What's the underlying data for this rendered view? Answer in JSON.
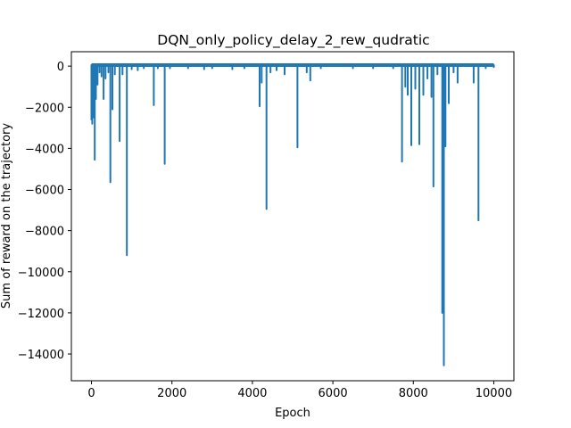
{
  "chart_data": {
    "type": "line",
    "title": "DQN_only_policy_delay_2_rew_qudratic",
    "xlabel": "Epoch",
    "ylabel": "Sum of reward on the trajectory",
    "xlim": [
      -500,
      10500
    ],
    "ylim": [
      -15300,
      700
    ],
    "xticks": [
      0,
      2000,
      4000,
      6000,
      8000,
      10000
    ],
    "xtick_labels": [
      "0",
      "2000",
      "4000",
      "6000",
      "8000",
      "10000"
    ],
    "yticks": [
      0,
      -2000,
      -4000,
      -6000,
      -8000,
      -10000,
      -12000,
      -14000
    ],
    "ytick_labels": [
      "0",
      "−2000",
      "−4000",
      "−6000",
      "−8000",
      "−10000",
      "−12000",
      "−14000"
    ],
    "grid": false,
    "color": "#1f77b4",
    "baseline": 50,
    "series": [
      {
        "dips": [
          [
            0,
            -2600
          ],
          [
            20,
            -2800
          ],
          [
            35,
            -700
          ],
          [
            60,
            -2500
          ],
          [
            80,
            -4550
          ],
          [
            110,
            -1600
          ],
          [
            150,
            -900
          ],
          [
            200,
            -300
          ],
          [
            250,
            -500
          ],
          [
            300,
            -1600
          ],
          [
            350,
            -600
          ],
          [
            420,
            -300
          ],
          [
            470,
            -5650
          ],
          [
            520,
            -2100
          ],
          [
            580,
            -400
          ],
          [
            700,
            -3650
          ],
          [
            770,
            -400
          ],
          [
            880,
            -9200
          ],
          [
            1000,
            -150
          ],
          [
            1150,
            -200
          ],
          [
            1300,
            -100
          ],
          [
            1550,
            -1900
          ],
          [
            1650,
            -100
          ],
          [
            1820,
            -4750
          ],
          [
            1950,
            -100
          ],
          [
            2400,
            -100
          ],
          [
            2800,
            -150
          ],
          [
            3000,
            -100
          ],
          [
            3500,
            -150
          ],
          [
            3800,
            -100
          ],
          [
            4180,
            -1950
          ],
          [
            4230,
            -800
          ],
          [
            4350,
            -6950
          ],
          [
            4450,
            -300
          ],
          [
            4600,
            -200
          ],
          [
            4800,
            -400
          ],
          [
            5120,
            -3950
          ],
          [
            5350,
            -300
          ],
          [
            5440,
            -700
          ],
          [
            5700,
            -100
          ],
          [
            6500,
            -100
          ],
          [
            7000,
            -100
          ],
          [
            7500,
            -100
          ],
          [
            7720,
            -4650
          ],
          [
            7800,
            -1000
          ],
          [
            7860,
            -1400
          ],
          [
            7950,
            -3850
          ],
          [
            8050,
            -1100
          ],
          [
            8150,
            -3800
          ],
          [
            8250,
            -1400
          ],
          [
            8350,
            -600
          ],
          [
            8450,
            -1500
          ],
          [
            8500,
            -5850
          ],
          [
            8600,
            -400
          ],
          [
            8720,
            -12000
          ],
          [
            8760,
            -14550
          ],
          [
            8800,
            -3900
          ],
          [
            8880,
            -1800
          ],
          [
            9000,
            -300
          ],
          [
            9100,
            -800
          ],
          [
            9500,
            -800
          ],
          [
            9620,
            -7500
          ],
          [
            9800,
            -100
          ],
          [
            10000,
            -50
          ]
        ]
      }
    ]
  }
}
